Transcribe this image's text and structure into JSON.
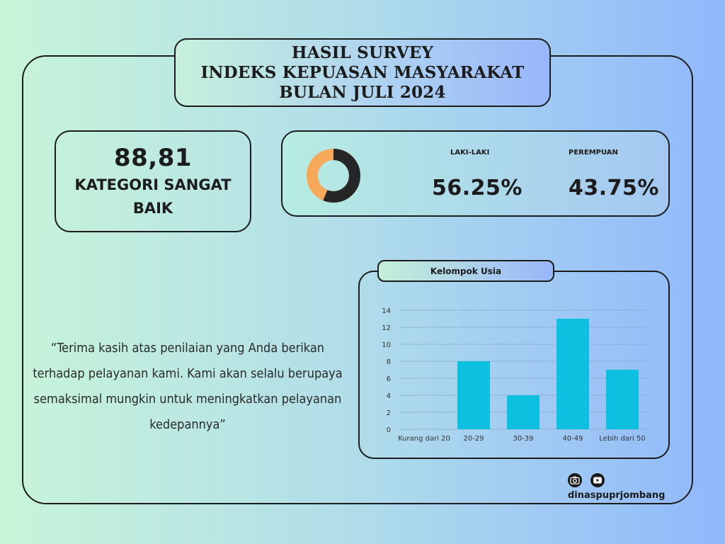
{
  "header": {
    "line1": "HASIL SURVEY",
    "line2": "INDEKS KEPUASAN MASYARAKAT",
    "line3": "BULAN JULI 2024"
  },
  "score": {
    "value": "88,81",
    "category": "KATEGORI SANGAT BAIK"
  },
  "gender": {
    "male_label": "LAKI-LAKI",
    "male_value": "56.25%",
    "female_label": "PEREMPUAN",
    "female_value": "43.75%",
    "donut_colors": {
      "male": "#262626",
      "female": "#f7a95a"
    }
  },
  "quote": {
    "text": "“Terima kasih atas penilaian yang Anda berikan terhadap pelayanan kami. Kami akan selalu berupaya semaksimal mungkin untuk meningkatkan pelayanan kedepannya”"
  },
  "chart_tab": {
    "label": "Kelompok Usia"
  },
  "chart_data": {
    "type": "bar",
    "title": "Kelompok Usia",
    "categories": [
      "Kurang dari 20",
      "20-29",
      "30-39",
      "40-49",
      "Lebih dari 50"
    ],
    "values": [
      0,
      8,
      4,
      13,
      7
    ],
    "ylim": [
      0,
      14
    ],
    "yticks": [
      0,
      2,
      4,
      6,
      8,
      10,
      12,
      14
    ],
    "grid": true,
    "bar_color": "#0ec0e0",
    "grid_color": "#8aa8c8"
  },
  "footer": {
    "icons": [
      "camera-icon",
      "youtube-icon"
    ],
    "handle": "dinaspuprjombang"
  }
}
